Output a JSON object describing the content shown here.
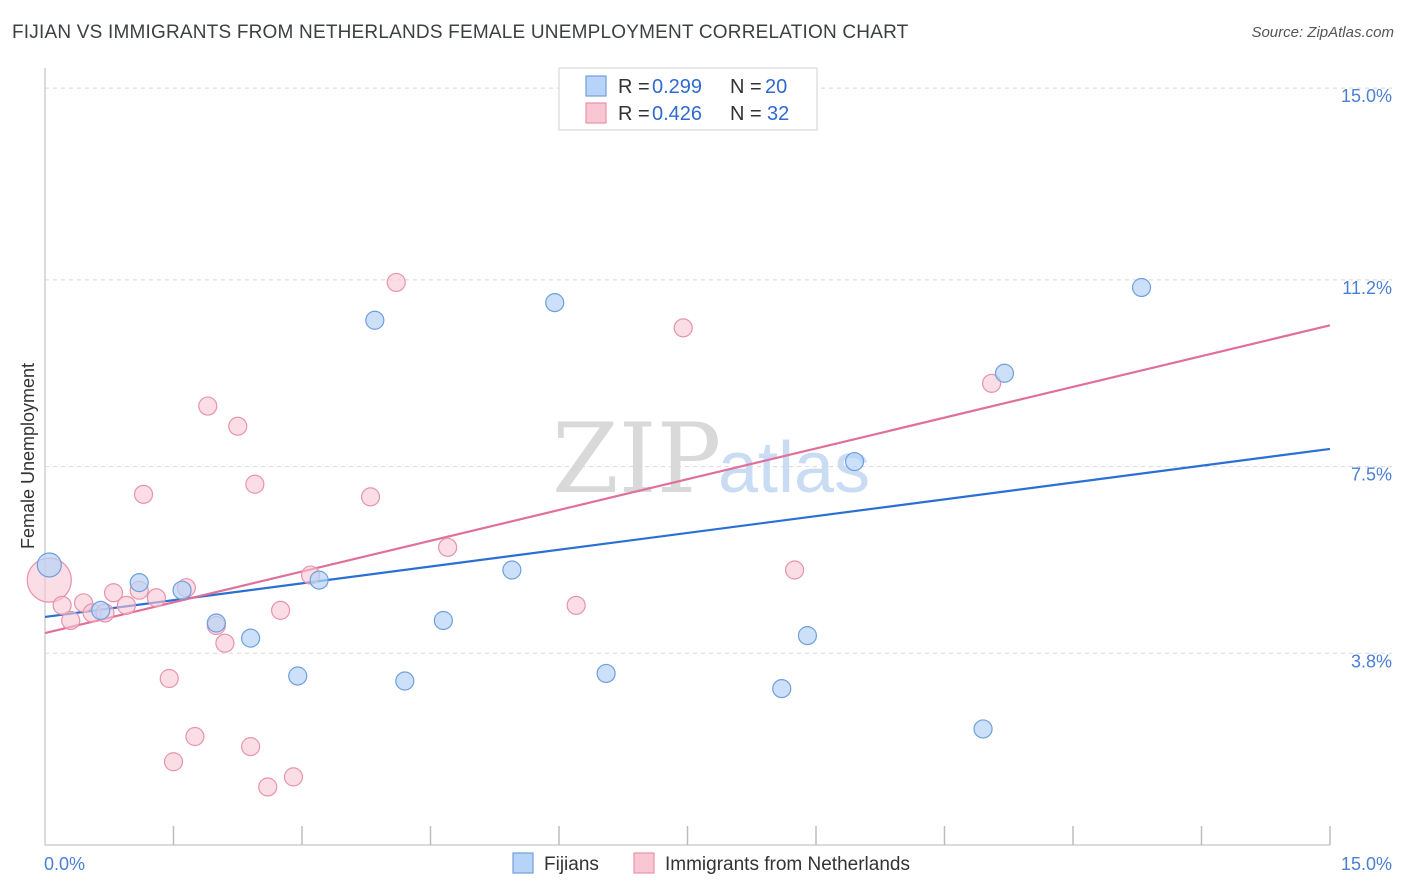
{
  "header": {
    "title": "FIJIAN VS IMMIGRANTS FROM NETHERLANDS FEMALE UNEMPLOYMENT CORRELATION CHART",
    "source": "Source: ZipAtlas.com"
  },
  "watermark": {
    "zip": "ZIP",
    "atlas": "atlas"
  },
  "colors": {
    "fijian_fill": "#b7d3f7",
    "fijian_stroke": "#6f9fdc",
    "fijian_line": "#2a6fd3",
    "neth_fill": "#f9c6d4",
    "neth_stroke": "#e893ad",
    "neth_line": "#e0709a",
    "tick_label": "#4a7fd4"
  },
  "legend": {
    "rows": [
      {
        "r_label": "R =",
        "r_value": "0.299",
        "n_label": "N =",
        "n_value": "20"
      },
      {
        "r_label": "R =",
        "r_value": "0.426",
        "n_label": "N =",
        "n_value": "32"
      }
    ]
  },
  "bottom_legend": {
    "fijians": "Fijians",
    "netherlands": "Immigrants from Netherlands"
  },
  "chart_data": {
    "type": "scatter",
    "title": "FIJIAN VS IMMIGRANTS FROM NETHERLANDS FEMALE UNEMPLOYMENT CORRELATION CHART",
    "xlabel": "",
    "ylabel": "Female Unemployment",
    "xlim": [
      0,
      15
    ],
    "ylim": [
      0,
      15.4
    ],
    "y_ticks": [
      {
        "value": 15.0,
        "label": "15.0%"
      },
      {
        "value": 11.2,
        "label": "11.2%"
      },
      {
        "value": 7.5,
        "label": "7.5%"
      },
      {
        "value": 3.8,
        "label": "3.8%"
      }
    ],
    "x_tick_labels": [
      {
        "value": 0,
        "label": "0.0%"
      },
      {
        "value": 15,
        "label": "15.0%"
      }
    ],
    "x_minor_ticks": [
      1.5,
      3,
      4.5,
      6,
      7.5,
      9,
      10.5,
      12,
      13.5,
      15
    ],
    "series": [
      {
        "name": "Fijians",
        "r": 0.299,
        "n": 20,
        "trend": {
          "x": [
            0,
            15
          ],
          "y": [
            4.52,
            7.85
          ]
        },
        "points": [
          {
            "x": 0.05,
            "y": 5.55,
            "size": 12
          },
          {
            "x": 0.65,
            "y": 4.65,
            "size": 9
          },
          {
            "x": 1.1,
            "y": 5.2,
            "size": 9
          },
          {
            "x": 1.6,
            "y": 5.05,
            "size": 9
          },
          {
            "x": 2.0,
            "y": 4.4,
            "size": 9
          },
          {
            "x": 2.4,
            "y": 4.1,
            "size": 9
          },
          {
            "x": 2.95,
            "y": 3.35,
            "size": 9
          },
          {
            "x": 3.2,
            "y": 5.25,
            "size": 9
          },
          {
            "x": 3.85,
            "y": 10.4,
            "size": 9
          },
          {
            "x": 4.2,
            "y": 3.25,
            "size": 9
          },
          {
            "x": 4.65,
            "y": 4.45,
            "size": 9
          },
          {
            "x": 5.45,
            "y": 5.45,
            "size": 9
          },
          {
            "x": 5.95,
            "y": 10.75,
            "size": 9
          },
          {
            "x": 6.55,
            "y": 3.4,
            "size": 9
          },
          {
            "x": 8.6,
            "y": 3.1,
            "size": 9
          },
          {
            "x": 8.9,
            "y": 4.15,
            "size": 9
          },
          {
            "x": 9.45,
            "y": 7.6,
            "size": 9
          },
          {
            "x": 10.95,
            "y": 2.3,
            "size": 9
          },
          {
            "x": 11.2,
            "y": 9.35,
            "size": 9
          },
          {
            "x": 12.8,
            "y": 11.05,
            "size": 9
          }
        ]
      },
      {
        "name": "Immigrants from Netherlands",
        "r": 0.426,
        "n": 32,
        "trend": {
          "x": [
            0,
            15
          ],
          "y": [
            4.2,
            10.3
          ]
        },
        "points": [
          {
            "x": 0.05,
            "y": 5.25,
            "size": 22
          },
          {
            "x": 0.2,
            "y": 4.75,
            "size": 9
          },
          {
            "x": 0.3,
            "y": 4.45,
            "size": 9
          },
          {
            "x": 0.45,
            "y": 4.8,
            "size": 9
          },
          {
            "x": 0.55,
            "y": 4.6,
            "size": 9
          },
          {
            "x": 0.7,
            "y": 4.6,
            "size": 9
          },
          {
            "x": 0.8,
            "y": 5.0,
            "size": 9
          },
          {
            "x": 0.95,
            "y": 4.75,
            "size": 9
          },
          {
            "x": 1.1,
            "y": 5.05,
            "size": 9
          },
          {
            "x": 1.15,
            "y": 6.95,
            "size": 9
          },
          {
            "x": 1.3,
            "y": 4.9,
            "size": 9
          },
          {
            "x": 1.45,
            "y": 3.3,
            "size": 9
          },
          {
            "x": 1.5,
            "y": 1.65,
            "size": 9
          },
          {
            "x": 1.65,
            "y": 5.1,
            "size": 9
          },
          {
            "x": 1.75,
            "y": 2.15,
            "size": 9
          },
          {
            "x": 1.9,
            "y": 8.7,
            "size": 9
          },
          {
            "x": 2.0,
            "y": 4.35,
            "size": 9
          },
          {
            "x": 2.1,
            "y": 4.0,
            "size": 9
          },
          {
            "x": 2.25,
            "y": 8.3,
            "size": 9
          },
          {
            "x": 2.4,
            "y": 1.95,
            "size": 9
          },
          {
            "x": 2.45,
            "y": 7.15,
            "size": 9
          },
          {
            "x": 2.6,
            "y": 1.15,
            "size": 9
          },
          {
            "x": 2.75,
            "y": 4.65,
            "size": 9
          },
          {
            "x": 2.9,
            "y": 1.35,
            "size": 9
          },
          {
            "x": 3.1,
            "y": 5.35,
            "size": 9
          },
          {
            "x": 3.8,
            "y": 6.9,
            "size": 9
          },
          {
            "x": 4.1,
            "y": 11.15,
            "size": 9
          },
          {
            "x": 4.7,
            "y": 5.9,
            "size": 9
          },
          {
            "x": 6.2,
            "y": 4.75,
            "size": 9
          },
          {
            "x": 7.45,
            "y": 10.25,
            "size": 9
          },
          {
            "x": 8.75,
            "y": 5.45,
            "size": 9
          },
          {
            "x": 11.05,
            "y": 9.15,
            "size": 9
          }
        ]
      }
    ]
  }
}
